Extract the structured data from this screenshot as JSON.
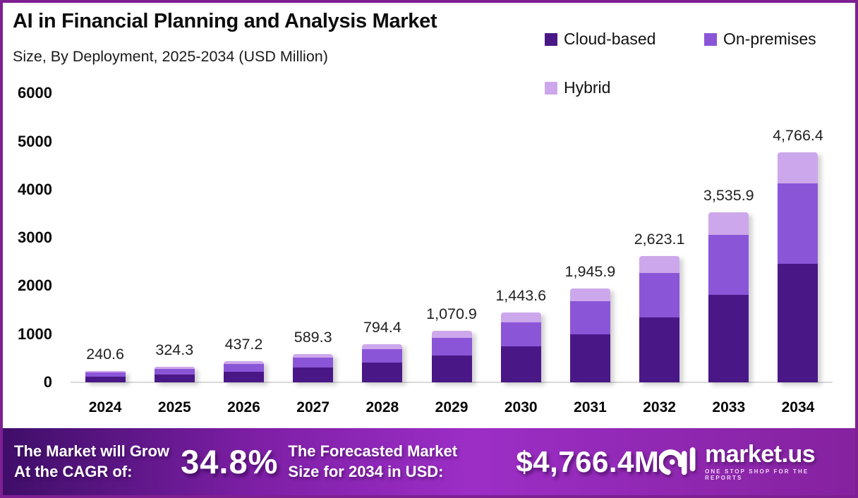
{
  "header": {
    "title": "AI in Financial Planning and Analysis Market",
    "subtitle": "Size, By Deployment, 2025-2034 (USD Million)"
  },
  "legend": [
    {
      "label": "Cloud-based",
      "color": "#4A1787"
    },
    {
      "label": "On-premises",
      "color": "#8B55D8"
    },
    {
      "label": "Hybrid",
      "color": "#CDA7EB"
    }
  ],
  "chart_data": {
    "type": "bar",
    "stacked": true,
    "grid": false,
    "legend_position": "top-right",
    "categories": [
      "2024",
      "2025",
      "2026",
      "2027",
      "2028",
      "2029",
      "2030",
      "2031",
      "2032",
      "2033",
      "2034"
    ],
    "series": [
      {
        "name": "Cloud-based",
        "color": "#4A1787",
        "values": [
          123.9,
          167.0,
          225.2,
          303.5,
          409.1,
          551.5,
          743.5,
          1002.1,
          1350.9,
          1821.0,
          2454.7
        ]
      },
      {
        "name": "On-premises",
        "color": "#8B55D8",
        "values": [
          84.7,
          114.2,
          153.9,
          207.4,
          279.6,
          377.0,
          508.1,
          685.0,
          923.3,
          1244.6,
          1677.8
        ]
      },
      {
        "name": "Hybrid",
        "color": "#CDA7EB",
        "values": [
          32.0,
          43.1,
          58.1,
          78.4,
          105.7,
          142.4,
          192.0,
          258.8,
          348.9,
          470.3,
          633.9
        ]
      }
    ],
    "totals": [
      240.6,
      324.3,
      437.2,
      589.3,
      794.4,
      1070.9,
      1443.6,
      1945.9,
      2623.1,
      3535.9,
      4766.4
    ],
    "total_labels": [
      "240.6",
      "324.3",
      "437.2",
      "589.3",
      "794.4",
      "1,070.9",
      "1,443.6",
      "1,945.9",
      "2,623.1",
      "3,535.9",
      "4,766.4"
    ],
    "yticks": [
      6000,
      5000,
      4000,
      3000,
      2000,
      1000,
      0
    ],
    "ylim": [
      0,
      6000
    ],
    "xlabel": "",
    "ylabel": ""
  },
  "footer": {
    "cagr_label_line1": "The Market will Grow",
    "cagr_label_line2": "At the CAGR of:",
    "cagr_value": "34.8%",
    "forecast_label_line1": "The Forecasted Market",
    "forecast_label_line2": "Size for 2034 in USD:",
    "forecast_value": "$4,766.4M",
    "brand": {
      "name": "market.us",
      "tagline": "ONE STOP SHOP FOR THE REPORTS"
    }
  },
  "colors": {
    "frame_border": "#7E2093",
    "cloud_based": "#4A1787",
    "on_premises": "#8B55D8",
    "hybrid": "#CDA7EB",
    "axis_line": "#d9d9d9",
    "banner_gradient_start": "#3F0E69",
    "banner_gradient_mid": "#9C2EC6",
    "banner_gradient_end": "#85229F",
    "banner_text": "#ffffff"
  }
}
